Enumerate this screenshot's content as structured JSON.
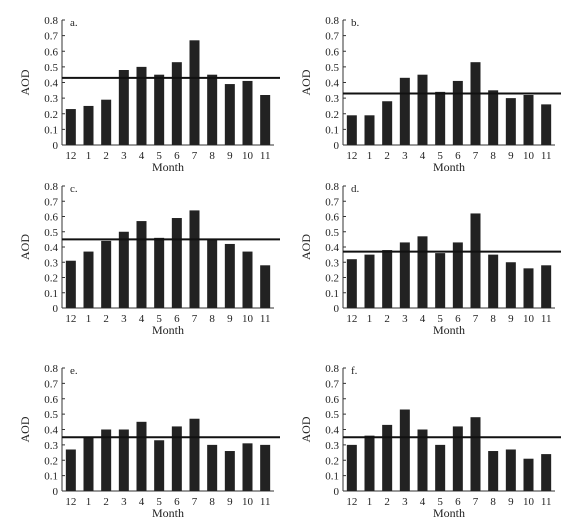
{
  "chart_data": [
    {
      "type": "bar",
      "panel_label": "a.",
      "categories": [
        "12",
        "1",
        "2",
        "3",
        "4",
        "5",
        "6",
        "7",
        "8",
        "9",
        "10",
        "11"
      ],
      "values": [
        0.23,
        0.25,
        0.29,
        0.48,
        0.5,
        0.45,
        0.53,
        0.67,
        0.45,
        0.39,
        0.41,
        0.32
      ],
      "reference_line": 0.43,
      "xlabel": "Month",
      "ylabel": "AOD",
      "ylim": [
        0,
        0.8
      ],
      "yticks": [
        "0",
        "0.1",
        "0.2",
        "0.3",
        "0.4",
        "0.5",
        "0.6",
        "0.7",
        "0.8"
      ]
    },
    {
      "type": "bar",
      "panel_label": "b.",
      "categories": [
        "12",
        "1",
        "2",
        "3",
        "4",
        "5",
        "6",
        "7",
        "8",
        "9",
        "10",
        "11"
      ],
      "values": [
        0.19,
        0.19,
        0.28,
        0.43,
        0.45,
        0.34,
        0.41,
        0.53,
        0.35,
        0.3,
        0.32,
        0.26
      ],
      "reference_line": 0.33,
      "xlabel": "Month",
      "ylabel": "AOD",
      "ylim": [
        0,
        0.8
      ],
      "yticks": [
        "0",
        "0.1",
        "0.2",
        "0.3",
        "0.4",
        "0.5",
        "0.6",
        "0.7",
        "0.8"
      ]
    },
    {
      "type": "bar",
      "panel_label": "c.",
      "categories": [
        "12",
        "1",
        "2",
        "3",
        "4",
        "5",
        "6",
        "7",
        "8",
        "9",
        "10",
        "11"
      ],
      "values": [
        0.31,
        0.37,
        0.44,
        0.5,
        0.57,
        0.46,
        0.59,
        0.64,
        0.45,
        0.42,
        0.37,
        0.28
      ],
      "reference_line": 0.45,
      "xlabel": "Month",
      "ylabel": "AOD",
      "ylim": [
        0,
        0.8
      ],
      "yticks": [
        "0",
        "0.1",
        "0.2",
        "0.3",
        "0.4",
        "0.5",
        "0.6",
        "0.7",
        "0.8"
      ]
    },
    {
      "type": "bar",
      "panel_label": "d.",
      "categories": [
        "12",
        "1",
        "2",
        "3",
        "4",
        "5",
        "6",
        "7",
        "8",
        "9",
        "10",
        "11"
      ],
      "values": [
        0.32,
        0.35,
        0.38,
        0.43,
        0.47,
        0.36,
        0.43,
        0.62,
        0.35,
        0.3,
        0.26,
        0.28
      ],
      "reference_line": 0.37,
      "xlabel": "Month",
      "ylabel": "AOD",
      "ylim": [
        0,
        0.8
      ],
      "yticks": [
        "0",
        "0.1",
        "0.2",
        "0.3",
        "0.4",
        "0.5",
        "0.6",
        "0.7",
        "0.8"
      ]
    },
    {
      "type": "bar",
      "panel_label": "e.",
      "categories": [
        "12",
        "1",
        "2",
        "3",
        "4",
        "5",
        "6",
        "7",
        "8",
        "9",
        "10",
        "11"
      ],
      "values": [
        0.27,
        0.35,
        0.4,
        0.4,
        0.45,
        0.33,
        0.42,
        0.47,
        0.3,
        0.26,
        0.31,
        0.3
      ],
      "reference_line": 0.35,
      "xlabel": "Month",
      "ylabel": "AOD",
      "ylim": [
        0,
        0.8
      ],
      "yticks": [
        "0",
        "0.1",
        "0.2",
        "0.3",
        "0.4",
        "0.5",
        "0.6",
        "0.7",
        "0.8"
      ]
    },
    {
      "type": "bar",
      "panel_label": "f.",
      "categories": [
        "12",
        "1",
        "2",
        "3",
        "4",
        "5",
        "6",
        "7",
        "8",
        "9",
        "10",
        "11"
      ],
      "values": [
        0.3,
        0.36,
        0.43,
        0.53,
        0.4,
        0.3,
        0.42,
        0.48,
        0.26,
        0.27,
        0.21,
        0.24
      ],
      "reference_line": 0.35,
      "xlabel": "Month",
      "ylabel": "AOD",
      "ylim": [
        0,
        0.8
      ],
      "yticks": [
        "0",
        "0.1",
        "0.2",
        "0.3",
        "0.4",
        "0.5",
        "0.6",
        "0.7",
        "0.8"
      ]
    }
  ],
  "style": {
    "bar_color": "#222222",
    "axis_color": "#333333",
    "line_color": "#111111"
  }
}
